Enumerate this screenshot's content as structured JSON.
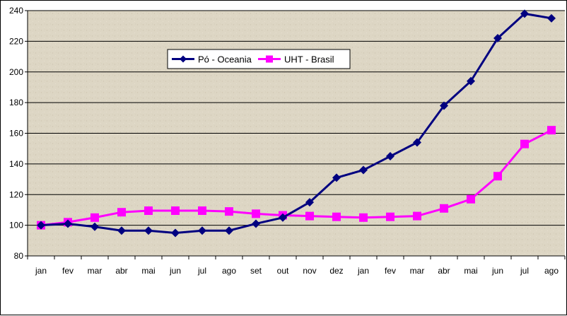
{
  "chart_data": {
    "type": "line",
    "categories": [
      "jan",
      "fev",
      "mar",
      "abr",
      "mai",
      "jun",
      "jul",
      "ago",
      "set",
      "out",
      "nov",
      "dez",
      "jan",
      "fev",
      "mar",
      "abr",
      "mai",
      "jun",
      "jul",
      "ago"
    ],
    "series": [
      {
        "name": "Pó - Oceania",
        "color": "#000080",
        "marker": "diamond",
        "values": [
          100,
          101,
          99,
          96.5,
          96.5,
          95,
          96.5,
          96.5,
          101,
          105,
          115,
          131,
          136,
          145,
          154,
          178,
          194,
          222,
          238,
          235
        ]
      },
      {
        "name": "UHT - Brasil",
        "color": "#FF00FF",
        "marker": "square",
        "values": [
          100,
          102,
          105,
          108.5,
          109.5,
          109.5,
          109.5,
          109,
          107.5,
          106.5,
          106,
          105.5,
          105,
          105.5,
          106,
          111,
          117,
          132,
          153,
          162
        ]
      }
    ],
    "ylim": [
      80,
      240
    ],
    "yticks": [
      80,
      100,
      120,
      140,
      160,
      180,
      200,
      220,
      240
    ],
    "grid": true,
    "legend_position": "top-center",
    "plot_background": "textured beige"
  }
}
